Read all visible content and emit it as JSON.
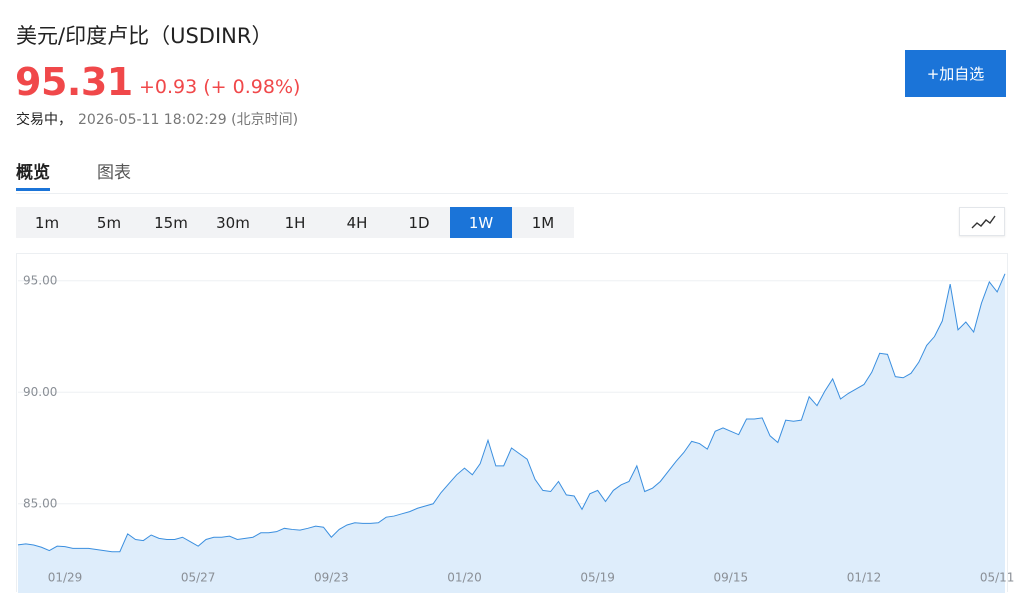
{
  "header": {
    "title": "美元/印度卢比（USDINR）",
    "price": "95.31",
    "change": "+0.93 (+ 0.98%)",
    "status": "交易中，",
    "timestamp": "2026-05-11 18:02:29 (北京时间)",
    "watch_button": "+加自选"
  },
  "tabs": [
    "概览",
    "图表"
  ],
  "active_tab": "概览",
  "intervals": [
    "1m",
    "5m",
    "15m",
    "30m",
    "1H",
    "4H",
    "1D",
    "1W",
    "1M"
  ],
  "active_interval": "1W",
  "chart_data": {
    "type": "area",
    "categories": [
      null,
      null,
      null,
      null,
      null,
      null,
      "01/29",
      null,
      null,
      null,
      null,
      null,
      null,
      null,
      null,
      null,
      null,
      null,
      null,
      null,
      null,
      null,
      null,
      "05/27",
      null,
      null,
      null,
      null,
      null,
      null,
      null,
      null,
      null,
      null,
      null,
      null,
      null,
      null,
      null,
      null,
      "09/23",
      null,
      null,
      null,
      null,
      null,
      null,
      null,
      null,
      null,
      null,
      null,
      null,
      null,
      null,
      null,
      null,
      "01/20",
      null,
      null,
      null,
      null,
      null,
      null,
      null,
      null,
      null,
      null,
      null,
      null,
      null,
      null,
      null,
      null,
      "05/19",
      null,
      null,
      null,
      null,
      null,
      null,
      null,
      null,
      null,
      null,
      null,
      null,
      null,
      null,
      null,
      null,
      "09/15",
      null,
      null,
      null,
      null,
      null,
      null,
      null,
      null,
      null,
      null,
      null,
      null,
      null,
      null,
      null,
      null,
      "01/12",
      null,
      null,
      null,
      null,
      null,
      null,
      null,
      null,
      null,
      null,
      null,
      null,
      null,
      null,
      null,
      null,
      "05/11",
      null
    ],
    "values": [
      83.16,
      83.2,
      83.15,
      83.05,
      82.9,
      83.1,
      83.08,
      83.0,
      83.0,
      83.0,
      82.95,
      82.9,
      82.85,
      82.85,
      83.65,
      83.4,
      83.35,
      83.6,
      83.45,
      83.4,
      83.4,
      83.5,
      83.3,
      83.1,
      83.4,
      83.5,
      83.5,
      83.55,
      83.4,
      83.45,
      83.5,
      83.7,
      83.7,
      83.75,
      83.9,
      83.85,
      83.82,
      83.9,
      84.0,
      83.95,
      83.5,
      83.85,
      84.05,
      84.15,
      84.12,
      84.12,
      84.15,
      84.4,
      84.45,
      84.55,
      84.65,
      84.8,
      84.9,
      85.0,
      85.5,
      85.9,
      86.3,
      86.6,
      86.3,
      86.8,
      87.85,
      86.7,
      86.7,
      87.5,
      87.25,
      87.0,
      86.1,
      85.6,
      85.55,
      86.0,
      85.4,
      85.35,
      84.75,
      85.45,
      85.6,
      85.1,
      85.6,
      85.85,
      86.0,
      86.7,
      85.55,
      85.7,
      86.0,
      86.45,
      86.9,
      87.3,
      87.8,
      87.7,
      87.45,
      88.25,
      88.4,
      88.25,
      88.1,
      88.8,
      88.8,
      88.85,
      88.05,
      87.75,
      88.75,
      88.7,
      88.75,
      89.8,
      89.4,
      90.05,
      90.6,
      89.7,
      89.95,
      90.15,
      90.35,
      90.9,
      91.75,
      91.7,
      90.7,
      90.65,
      90.85,
      91.35,
      92.1,
      92.5,
      93.2,
      94.85,
      92.8,
      93.15,
      92.7,
      94.0,
      94.95,
      94.5,
      95.31
    ],
    "color": "#3b8fdf",
    "fill_color": "#deedfb",
    "ylim": [
      81,
      96.2
    ],
    "yticks": [
      {
        "value": 85,
        "label": "85.00"
      },
      {
        "value": 90,
        "label": "90.00"
      },
      {
        "value": 95,
        "label": "95.00"
      }
    ],
    "grid": true
  }
}
